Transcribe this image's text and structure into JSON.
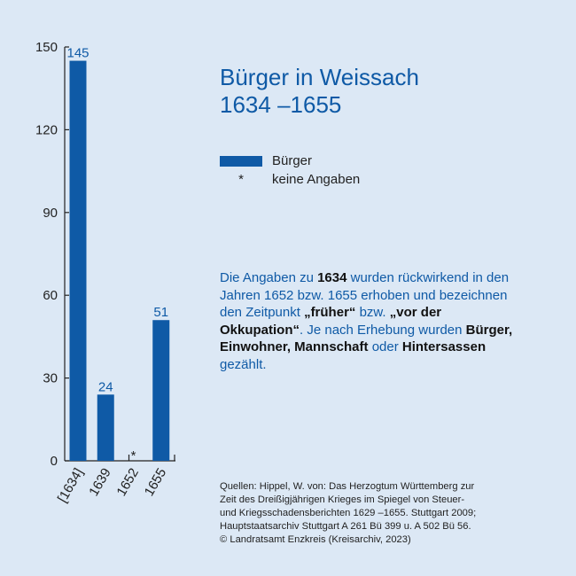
{
  "title": {
    "line1": "Bürger in Weissach",
    "line2": "1634 –1655"
  },
  "legend": {
    "bar_label": "Bürger",
    "star_symbol": "*",
    "star_label": "keine Angaben"
  },
  "note": {
    "p1": "Die Angaben zu ",
    "b1": "1634",
    "p2": " wurden rückwirkend in den Jahren 1652 bzw. 1655 erhoben und bezeichnen den Zeitpunkt ",
    "b2": "„früher“",
    "p3": " bzw. ",
    "b3": "„vor der Okkupation“",
    "p4": ". Je nach Erhebung wurden ",
    "b4": "Bürger, Einwohner, Mannschaft",
    "p5": " oder ",
    "b5": "Hintersassen",
    "p6": " gezählt."
  },
  "sources": [
    "Quellen: Hippel, W. von: Das Herzogtum Württemberg zur",
    "Zeit des Dreißigjährigen Krieges im Spiegel von Steuer-",
    "und Kriegsschadensberichten 1629 –1655. Stuttgart 2009;",
    "Hauptstaatsarchiv Stuttgart A 261 Bü 399 u. A 502 Bü 56.",
    "© Landratsamt Enzkreis (Kreisarchiv, 2023)"
  ],
  "chart_data": {
    "type": "bar",
    "categories": [
      "[1634]",
      "1639",
      "1652",
      "1655"
    ],
    "values": [
      145,
      24,
      null,
      51
    ],
    "labels": [
      "145",
      "24",
      "*",
      "51"
    ],
    "yticks": [
      0,
      30,
      60,
      90,
      120,
      150
    ],
    "ylim": [
      0,
      150
    ],
    "bar_color": "#0f5aa6"
  }
}
